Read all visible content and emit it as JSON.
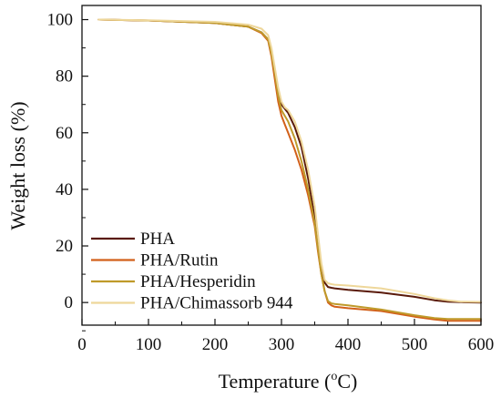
{
  "chart_data": {
    "type": "line",
    "xlabel": "Temperature (",
    "xlabel_unit_sup": "o",
    "xlabel_unit_suffix": "C)",
    "ylabel": "Weight loss (%)",
    "xlim": [
      0,
      600
    ],
    "ylim": [
      -8,
      105
    ],
    "x_ticks": [
      0,
      100,
      200,
      300,
      400,
      500,
      600
    ],
    "y_ticks": [
      0,
      20,
      40,
      60,
      80,
      100
    ],
    "grid": false,
    "legend_position": "bottom-left",
    "series": [
      {
        "name": "PHA",
        "color": "#5a1a0a",
        "x": [
          25,
          100,
          200,
          250,
          270,
          280,
          285,
          290,
          295,
          300,
          305,
          310,
          320,
          330,
          340,
          350,
          355,
          360,
          365,
          370,
          375,
          380,
          400,
          450,
          500,
          530,
          550,
          570,
          600
        ],
        "y": [
          100,
          99.7,
          98.8,
          97.5,
          95.5,
          93,
          88,
          80,
          73,
          70,
          68.5,
          67,
          62,
          55,
          44,
          30,
          20,
          12,
          7,
          5.5,
          5.2,
          5,
          4.5,
          3.5,
          2,
          0.8,
          0.3,
          0.1,
          0
        ]
      },
      {
        "name": "PHA/Rutin",
        "color": "#d2601a",
        "x": [
          25,
          100,
          200,
          250,
          270,
          280,
          285,
          290,
          295,
          300,
          305,
          310,
          320,
          330,
          340,
          350,
          355,
          360,
          365,
          370,
          375,
          380,
          400,
          450,
          500,
          530,
          550,
          570,
          600
        ],
        "y": [
          100,
          99.7,
          98.8,
          97.5,
          95.2,
          92.5,
          87,
          79,
          71,
          66,
          63,
          60,
          54,
          47,
          38,
          27,
          18,
          10,
          4,
          0,
          -1,
          -1.5,
          -2,
          -3,
          -5,
          -6,
          -6.5,
          -6.5,
          -6.5
        ]
      },
      {
        "name": "PHA/Hesperidin",
        "color": "#bf9a2a",
        "x": [
          25,
          100,
          200,
          250,
          270,
          280,
          285,
          290,
          295,
          300,
          305,
          310,
          320,
          330,
          340,
          350,
          355,
          360,
          365,
          370,
          375,
          380,
          400,
          450,
          500,
          530,
          550,
          570,
          600
        ],
        "y": [
          100,
          99.7,
          98.8,
          97.5,
          95.5,
          93,
          88,
          81,
          73,
          68,
          66,
          64,
          58,
          50,
          40,
          28,
          19,
          10,
          4,
          0.5,
          -0.3,
          -0.5,
          -1,
          -2.5,
          -4.5,
          -5.5,
          -5.8,
          -5.8,
          -5.8
        ]
      },
      {
        "name": "PHA/Chimassorb 944",
        "color": "#eed79a",
        "x": [
          25,
          100,
          200,
          250,
          270,
          280,
          285,
          290,
          295,
          300,
          305,
          310,
          320,
          330,
          340,
          350,
          355,
          360,
          365,
          370,
          375,
          380,
          400,
          450,
          500,
          530,
          550,
          570,
          600
        ],
        "y": [
          100,
          99.8,
          99.2,
          98.2,
          96.8,
          94.5,
          90,
          83,
          76,
          71,
          69,
          68,
          64,
          57,
          47,
          34,
          24,
          14,
          8,
          6.8,
          6.5,
          6.3,
          6,
          5,
          3,
          1.5,
          0.8,
          0.3,
          0.2
        ]
      }
    ]
  }
}
